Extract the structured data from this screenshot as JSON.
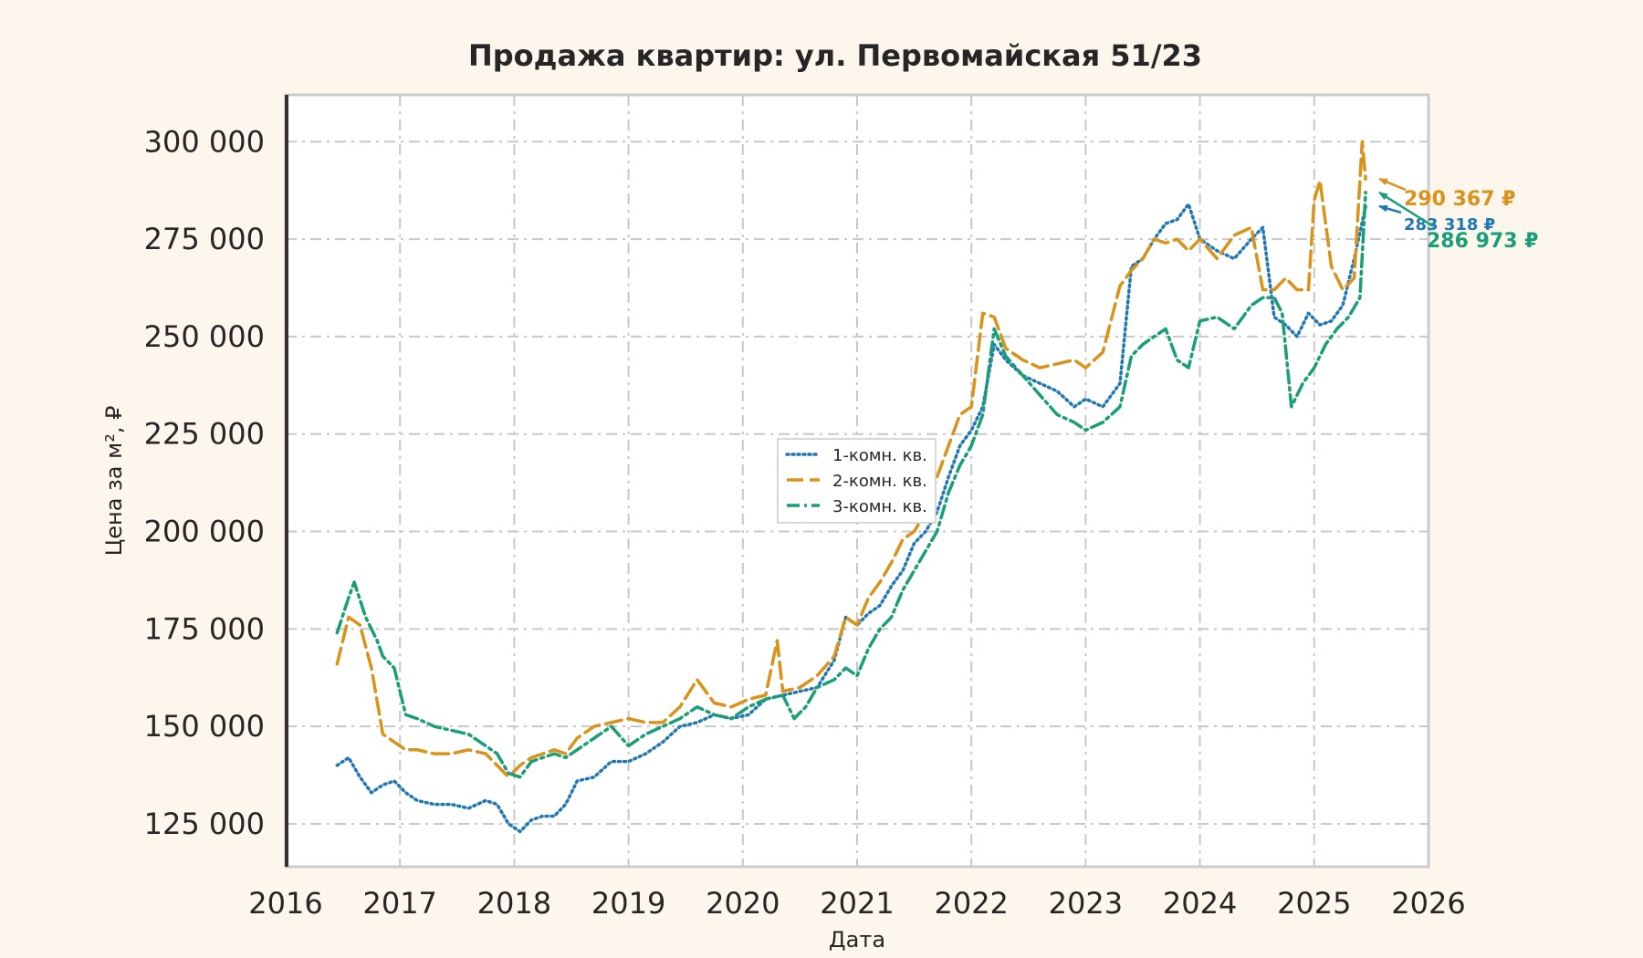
{
  "colors": {
    "background": "#fdf6ec",
    "plot_background": "#ffffff",
    "series1": "#1f77b4",
    "series2": "#d9921a",
    "series3": "#1a9e77"
  },
  "chart_data": {
    "type": "line",
    "title": "Продажа квартир: ул. Первомайская 51/23",
    "xlabel": "Дата",
    "ylabel": "Цена за м², ₽",
    "xlim": [
      2016.0,
      2026.0
    ],
    "ylim": [
      114000,
      312000
    ],
    "x_ticks": [
      2016,
      2017,
      2018,
      2019,
      2020,
      2021,
      2022,
      2023,
      2024,
      2025,
      2026
    ],
    "x_tick_labels": [
      "2016",
      "2017",
      "2018",
      "2019",
      "2020",
      "2021",
      "2022",
      "2023",
      "2024",
      "2025",
      "2026"
    ],
    "y_ticks": [
      125000,
      150000,
      175000,
      200000,
      225000,
      250000,
      275000,
      300000
    ],
    "y_tick_labels": [
      "125 000",
      "150 000",
      "175 000",
      "200 000",
      "225 000",
      "250 000",
      "275 000",
      "300 000"
    ],
    "grid": true,
    "legend_position": "center",
    "series": [
      {
        "name": "1-комн. кв.",
        "style": "dotted",
        "color": "#1f77b4",
        "x": [
          2016.45,
          2016.55,
          2016.65,
          2016.75,
          2016.85,
          2016.95,
          2017.05,
          2017.15,
          2017.3,
          2017.45,
          2017.6,
          2017.75,
          2017.85,
          2017.95,
          2018.05,
          2018.15,
          2018.25,
          2018.35,
          2018.45,
          2018.55,
          2018.7,
          2018.85,
          2019.0,
          2019.15,
          2019.3,
          2019.45,
          2019.6,
          2019.75,
          2019.9,
          2020.05,
          2020.2,
          2020.35,
          2020.5,
          2020.65,
          2020.8,
          2020.9,
          2021.0,
          2021.1,
          2021.2,
          2021.3,
          2021.4,
          2021.5,
          2021.6,
          2021.7,
          2021.8,
          2021.9,
          2022.0,
          2022.1,
          2022.2,
          2022.3,
          2022.45,
          2022.6,
          2022.75,
          2022.9,
          2023.0,
          2023.15,
          2023.3,
          2023.4,
          2023.5,
          2023.6,
          2023.7,
          2023.8,
          2023.9,
          2024.0,
          2024.15,
          2024.3,
          2024.45,
          2024.55,
          2024.65,
          2024.75,
          2024.85,
          2024.95,
          2025.05,
          2025.15,
          2025.25,
          2025.35,
          2025.45
        ],
        "y": [
          140000,
          142000,
          137000,
          133000,
          135000,
          136000,
          133000,
          131000,
          130000,
          130000,
          129000,
          131000,
          130000,
          125000,
          123000,
          126000,
          127000,
          127000,
          130000,
          136000,
          137000,
          141000,
          141000,
          143000,
          146000,
          150000,
          151000,
          153000,
          152000,
          153000,
          157000,
          158000,
          159000,
          160000,
          167000,
          178000,
          176000,
          179000,
          181000,
          186000,
          190000,
          197000,
          200000,
          205000,
          214000,
          222000,
          226000,
          232000,
          248000,
          244000,
          240000,
          238000,
          236000,
          232000,
          234000,
          232000,
          238000,
          268000,
          270000,
          275000,
          279000,
          280000,
          284000,
          275000,
          272000,
          270000,
          275000,
          278000,
          255000,
          253000,
          250000,
          256000,
          253000,
          254000,
          258000,
          270000,
          283318
        ]
      },
      {
        "name": "2-комн. кв.",
        "style": "dashed",
        "color": "#d9921a",
        "x": [
          2016.45,
          2016.55,
          2016.65,
          2016.75,
          2016.85,
          2016.95,
          2017.05,
          2017.15,
          2017.3,
          2017.45,
          2017.6,
          2017.75,
          2017.85,
          2017.95,
          2018.05,
          2018.15,
          2018.25,
          2018.35,
          2018.45,
          2018.55,
          2018.7,
          2018.85,
          2019.0,
          2019.15,
          2019.3,
          2019.45,
          2019.6,
          2019.75,
          2019.9,
          2020.05,
          2020.2,
          2020.3,
          2020.35,
          2020.5,
          2020.65,
          2020.8,
          2020.9,
          2021.0,
          2021.1,
          2021.2,
          2021.3,
          2021.4,
          2021.5,
          2021.6,
          2021.7,
          2021.8,
          2021.9,
          2022.0,
          2022.1,
          2022.2,
          2022.3,
          2022.45,
          2022.6,
          2022.75,
          2022.9,
          2023.0,
          2023.15,
          2023.3,
          2023.4,
          2023.5,
          2023.6,
          2023.7,
          2023.8,
          2023.9,
          2024.0,
          2024.15,
          2024.3,
          2024.45,
          2024.55,
          2024.65,
          2024.75,
          2024.85,
          2024.95,
          2025.0,
          2025.05,
          2025.15,
          2025.25,
          2025.35,
          2025.42,
          2025.45
        ],
        "y": [
          166000,
          178000,
          176000,
          165000,
          148000,
          146000,
          144000,
          144000,
          143000,
          143000,
          144000,
          143000,
          140000,
          137000,
          140000,
          142000,
          143000,
          144000,
          143000,
          147000,
          150000,
          151000,
          152000,
          151000,
          151000,
          155000,
          162000,
          156000,
          155000,
          157000,
          158000,
          172000,
          159000,
          160000,
          163000,
          168000,
          178000,
          176000,
          183000,
          187000,
          192000,
          198000,
          200000,
          205000,
          214000,
          222000,
          230000,
          232000,
          256000,
          255000,
          247000,
          244000,
          242000,
          243000,
          244000,
          242000,
          246000,
          263000,
          267000,
          270000,
          275000,
          274000,
          275000,
          272000,
          275000,
          270000,
          276000,
          278000,
          262000,
          262000,
          265000,
          262000,
          262000,
          285000,
          290000,
          268000,
          262000,
          265000,
          300000,
          290367
        ]
      },
      {
        "name": "3-комн. кв.",
        "style": "dashdot",
        "color": "#1a9e77",
        "x": [
          2016.45,
          2016.55,
          2016.6,
          2016.7,
          2016.8,
          2016.85,
          2016.95,
          2017.05,
          2017.15,
          2017.3,
          2017.45,
          2017.6,
          2017.75,
          2017.85,
          2017.95,
          2018.05,
          2018.15,
          2018.25,
          2018.35,
          2018.45,
          2018.55,
          2018.7,
          2018.85,
          2019.0,
          2019.15,
          2019.3,
          2019.45,
          2019.6,
          2019.75,
          2019.9,
          2020.05,
          2020.2,
          2020.35,
          2020.45,
          2020.55,
          2020.65,
          2020.8,
          2020.9,
          2021.0,
          2021.1,
          2021.2,
          2021.3,
          2021.4,
          2021.5,
          2021.6,
          2021.7,
          2021.8,
          2021.9,
          2022.0,
          2022.1,
          2022.2,
          2022.3,
          2022.45,
          2022.6,
          2022.75,
          2022.9,
          2023.0,
          2023.15,
          2023.3,
          2023.4,
          2023.5,
          2023.6,
          2023.7,
          2023.8,
          2023.9,
          2024.0,
          2024.15,
          2024.3,
          2024.45,
          2024.55,
          2024.65,
          2024.72,
          2024.8,
          2024.9,
          2025.0,
          2025.1,
          2025.2,
          2025.3,
          2025.4,
          2025.45
        ],
        "y": [
          174000,
          183000,
          187000,
          178000,
          172000,
          168000,
          165000,
          153000,
          152000,
          150000,
          149000,
          148000,
          145000,
          143000,
          138000,
          137000,
          141000,
          142000,
          143000,
          142000,
          144000,
          147000,
          150000,
          145000,
          148000,
          150000,
          152000,
          155000,
          153000,
          152000,
          155000,
          157000,
          158000,
          152000,
          155000,
          160000,
          162000,
          165000,
          163000,
          170000,
          175000,
          178000,
          185000,
          190000,
          195000,
          200000,
          210000,
          217000,
          222000,
          230000,
          252000,
          245000,
          240000,
          235000,
          230000,
          228000,
          226000,
          228000,
          232000,
          245000,
          248000,
          250000,
          252000,
          244000,
          242000,
          254000,
          255000,
          252000,
          258000,
          260000,
          260000,
          256000,
          232000,
          238000,
          242000,
          248000,
          252000,
          255000,
          260000,
          286973
        ]
      }
    ],
    "annotations": [
      {
        "text": "290 367 ₽",
        "series": "2-комн. кв.",
        "x": 2025.45,
        "y": 290367
      },
      {
        "text": "283 318 ₽",
        "series": "1-комн. кв.",
        "x": 2025.45,
        "y": 283318
      },
      {
        "text": "286 973 ₽",
        "series": "3-комн. кв.",
        "x": 2025.45,
        "y": 286973
      }
    ]
  }
}
